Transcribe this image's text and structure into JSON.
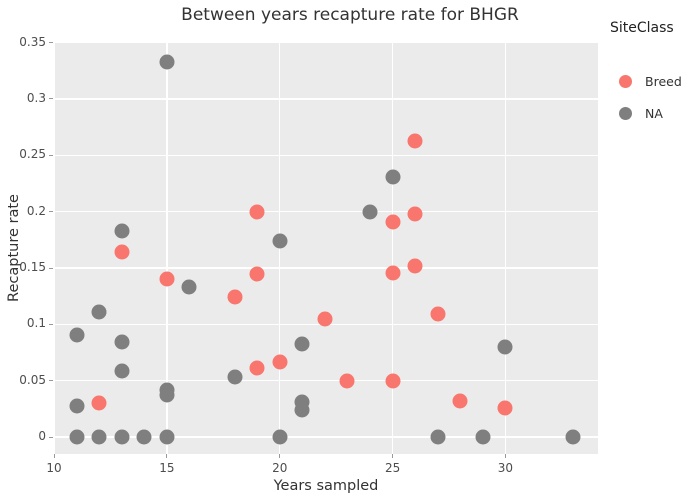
{
  "title": "Between years recapture rate for BHGR",
  "legend": {
    "title": "SiteClass",
    "items": [
      {
        "label": "Breed",
        "color": "#f8766d"
      },
      {
        "label": "NA",
        "color": "#7f7f7f"
      }
    ]
  },
  "axes": {
    "x": {
      "label": "Years sampled",
      "tick_labels": [
        "10",
        "15",
        "20",
        "25",
        "30"
      ],
      "tick_values": [
        10,
        15,
        20,
        25,
        30
      ]
    },
    "y": {
      "label": "Recapture rate",
      "tick_labels": [
        "0.35",
        "0.3",
        "0.25",
        "0.2",
        "0.15",
        "0.1",
        "0.05",
        "0"
      ],
      "tick_values": [
        0.35,
        0.3,
        0.25,
        0.2,
        0.15,
        0.1,
        0.05,
        0
      ]
    }
  },
  "colors": {
    "panel_bg": "#ebebeb",
    "gridline": "#ffffff",
    "tick_text": "#4d4d4d",
    "axis_title_text": "#333333",
    "title_text": "#333333",
    "breed": "#f8766d",
    "na": "#7f7f7f"
  },
  "chart_data": {
    "type": "scatter",
    "title": "Between years recapture rate for BHGR",
    "xlabel": "Years sampled",
    "ylabel": "Recapture rate",
    "xlim": [
      10,
      34.1
    ],
    "ylim": [
      -0.015,
      0.3505
    ],
    "grid": true,
    "legend_title": "SiteClass",
    "legend_position": "right-top",
    "marker_size_px": 15,
    "series": [
      {
        "name": "Breed",
        "color": "#f8766d",
        "points": [
          [
            12,
            0.03
          ],
          [
            13,
            0.164
          ],
          [
            15,
            0.14
          ],
          [
            18,
            0.124
          ],
          [
            19,
            0.2
          ],
          [
            19,
            0.145
          ],
          [
            19,
            0.061
          ],
          [
            20,
            0.067
          ],
          [
            22,
            0.105
          ],
          [
            23,
            0.05
          ],
          [
            25,
            0.191
          ],
          [
            25,
            0.146
          ],
          [
            25,
            0.05
          ],
          [
            26,
            0.263
          ],
          [
            26,
            0.198
          ],
          [
            26,
            0.152
          ],
          [
            27,
            0.109
          ],
          [
            28,
            0.032
          ],
          [
            30,
            0.026
          ]
        ]
      },
      {
        "name": "NA",
        "color": "#7f7f7f",
        "points": [
          [
            11,
            0.091
          ],
          [
            11,
            0.028
          ],
          [
            11,
            0.0
          ],
          [
            12,
            0.111
          ],
          [
            12,
            0.0
          ],
          [
            13,
            0.183
          ],
          [
            13,
            0.084
          ],
          [
            13,
            0.059
          ],
          [
            13,
            0.0
          ],
          [
            14,
            0.0
          ],
          [
            15,
            0.333
          ],
          [
            15,
            0.042
          ],
          [
            15,
            0.037
          ],
          [
            15,
            0.0
          ],
          [
            16,
            0.133
          ],
          [
            18,
            0.053
          ],
          [
            20,
            0.174
          ],
          [
            20,
            0.0
          ],
          [
            21,
            0.083
          ],
          [
            21,
            0.031
          ],
          [
            21,
            0.024
          ],
          [
            24,
            0.2
          ],
          [
            25,
            0.231
          ],
          [
            27,
            0.0
          ],
          [
            29,
            0.0
          ],
          [
            30,
            0.08
          ],
          [
            33,
            0.0
          ]
        ]
      }
    ]
  }
}
